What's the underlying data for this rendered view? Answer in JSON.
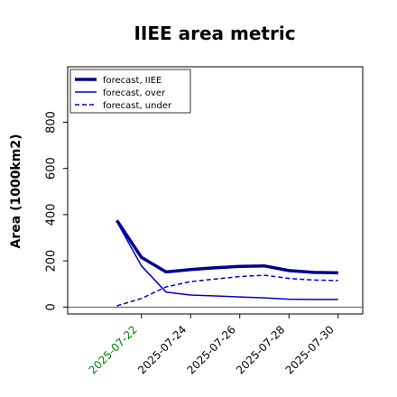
{
  "chart_data": {
    "type": "line",
    "title": "IIEE area metric",
    "ylabel": "Area (1000km2)",
    "xlabel": "",
    "ylim": [
      -30,
      1040
    ],
    "ytick_labels": [
      "0",
      "200",
      "400",
      "600",
      "800"
    ],
    "yticks": [
      0,
      200,
      400,
      600,
      800
    ],
    "x": [
      "2025-07-21",
      "2025-07-22",
      "2025-07-23",
      "2025-07-24",
      "2025-07-25",
      "2025-07-26",
      "2025-07-27",
      "2025-07-28",
      "2025-07-29",
      "2025-07-30"
    ],
    "xlim": [
      "2025-07-19",
      "2025-07-31"
    ],
    "xtick_labels": [
      "2025-07-22",
      "2025-07-24",
      "2025-07-26",
      "2025-07-28",
      "2025-07-30"
    ],
    "xtick_dates": [
      "2025-07-22",
      "2025-07-24",
      "2025-07-26",
      "2025-07-28",
      "2025-07-30"
    ],
    "xtick_colors": [
      "#008000",
      "#000000",
      "#000000",
      "#000000",
      "#000000"
    ],
    "series": [
      {
        "name": "forecast, IIEE",
        "values": [
          375,
          215,
          152,
          162,
          170,
          176,
          178,
          158,
          150,
          148
        ],
        "color": "#00008b",
        "style": "solid",
        "width": 3.5
      },
      {
        "name": "forecast, over",
        "values": [
          370,
          178,
          65,
          52,
          48,
          44,
          40,
          34,
          33,
          33
        ],
        "color": "#0000cd",
        "style": "solid",
        "width": 1.5
      },
      {
        "name": "forecast, under",
        "values": [
          5,
          37,
          87,
          110,
          121,
          132,
          138,
          124,
          117,
          115
        ],
        "color": "#0000cd",
        "style": "dashed",
        "width": 1.5
      }
    ],
    "zero_line": true,
    "grid": false,
    "legend": "top-left"
  }
}
